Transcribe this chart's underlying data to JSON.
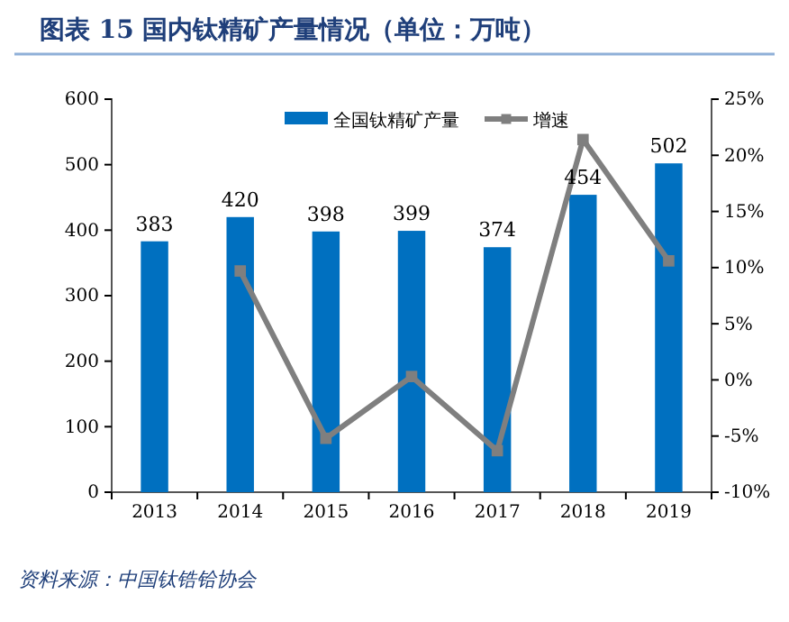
{
  "chart_data": {
    "type": "bar",
    "title": "图表 15   国内钛精矿产量情况（单位：万吨）",
    "categories": [
      "2013",
      "2014",
      "2015",
      "2016",
      "2017",
      "2018",
      "2019"
    ],
    "series": [
      {
        "name": "全国钛精矿产量",
        "color": "#0070c0",
        "values": [
          383,
          420,
          398,
          399,
          374,
          454,
          502
        ],
        "value_labels": [
          "383",
          "420",
          "398",
          "399",
          "374",
          "454",
          "502"
        ]
      },
      {
        "name": "增速",
        "type": "line",
        "axis": "y2",
        "color": "#7f7f7f",
        "marker": "square",
        "values": [
          null,
          9.7,
          -5.2,
          0.3,
          -6.3,
          21.4,
          10.6
        ]
      }
    ],
    "ylim": [
      0,
      600
    ],
    "yticks": [
      0,
      100,
      200,
      300,
      400,
      500,
      600
    ],
    "y2lim": [
      -10,
      25
    ],
    "y2ticks": [
      {
        "value": -10,
        "label": "-10%"
      },
      {
        "value": -5,
        "label": "-5%"
      },
      {
        "value": 0,
        "label": "0%"
      },
      {
        "value": 5,
        "label": "5%"
      },
      {
        "value": 10,
        "label": "10%"
      },
      {
        "value": 15,
        "label": "15%"
      },
      {
        "value": 20,
        "label": "20%"
      },
      {
        "value": 25,
        "label": "25%"
      }
    ],
    "grid": false,
    "legend": "top",
    "annotations": [
      "资料来源：中国钛锆铪协会"
    ]
  }
}
